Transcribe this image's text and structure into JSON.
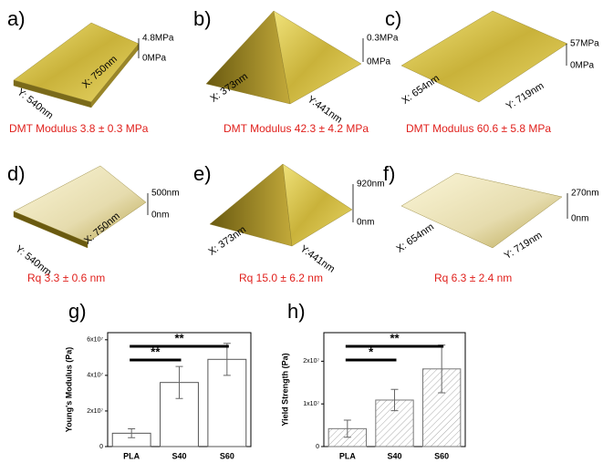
{
  "panels": [
    {
      "letter": "a)",
      "scale_max": "4.8MPa",
      "scale_min": "0MPa",
      "axis1": "Y: 540nm",
      "axis2": "X: 750nm",
      "caption": "DMT Modulus 3.8 ± 0.3 MPa"
    },
    {
      "letter": "b)",
      "scale_max": "0.3MPa",
      "scale_min": "0MPa",
      "axis1": "X: 373nm",
      "axis2": "Y:441nm",
      "caption": "DMT Modulus 42.3 ± 4.2 MPa"
    },
    {
      "letter": "c)",
      "scale_max": "57MPa",
      "scale_min": "0MPa",
      "axis1": "X: 654nm",
      "axis2": "Y: 719nm",
      "caption": "DMT Modulus 60.6 ± 5.8 MPa"
    },
    {
      "letter": "d)",
      "scale_max": "500nm",
      "scale_min": "0nm",
      "axis1": "Y: 540nm",
      "axis2": "X: 750nm",
      "caption": "Rq 3.3 ± 0.6 nm"
    },
    {
      "letter": "e)",
      "scale_max": "920nm",
      "scale_min": "0nm",
      "axis1": "X: 373nm",
      "axis2": "Y:441nm",
      "caption": "Rq 15.0 ± 6.2 nm"
    },
    {
      "letter": "f)",
      "scale_max": "270nm",
      "scale_min": "0nm",
      "axis1": "X: 654nm",
      "axis2": "Y: 719nm",
      "caption": "Rq 6.3 ± 2.4 nm"
    }
  ],
  "chart_data": [
    {
      "type": "bar",
      "letter": "g)",
      "ylabel": "Young's Modulus (Pa)",
      "categories": [
        "PLA",
        "S40",
        "S60"
      ],
      "values": [
        7500000,
        36000000,
        49000000
      ],
      "errors": [
        2500000,
        9000000,
        9000000
      ],
      "color": "#ffffff",
      "edgecolor": "#555555",
      "hatch": false,
      "ylim": [
        0,
        64000000
      ],
      "yticks": [
        0,
        {
          "value": 20000000,
          "label": "2x10⁷"
        },
        {
          "value": 40000000,
          "label": "4x10⁷"
        },
        {
          "value": 60000000,
          "label": "6x10⁷"
        }
      ],
      "annotations": [
        "**",
        "**"
      ]
    },
    {
      "type": "bar",
      "letter": "h)",
      "ylabel": "Yield Strength (Pa)",
      "categories": [
        "PLA",
        "S40",
        "S60"
      ],
      "values": [
        4200000,
        10900000,
        18200000
      ],
      "errors": [
        2000000,
        2500000,
        5600000
      ],
      "color": "#ffffff",
      "edgecolor": "#777777",
      "hatch": true,
      "ylim": [
        0,
        26700000
      ],
      "yticks": [
        0,
        {
          "value": 10000000,
          "label": "1x10⁷"
        },
        {
          "value": 20000000,
          "label": "2x10⁷"
        }
      ],
      "annotations": [
        "**",
        "*"
      ]
    }
  ]
}
